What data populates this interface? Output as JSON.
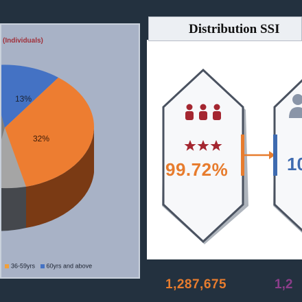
{
  "pie_panel": {
    "title_fragment": "(Individuals)"
  },
  "chart_data": {
    "type": "pie",
    "title": "(Individuals)",
    "slices": [
      {
        "label": "",
        "value": 13,
        "display": "13%",
        "color": "#4472c4"
      },
      {
        "label": "36-59yrs",
        "value": 32,
        "display": "32%",
        "color": "#ed7d31"
      },
      {
        "label": "",
        "value": 55,
        "display": "",
        "color": "#a5a5a5"
      }
    ],
    "legend": [
      {
        "label": "36-59yrs",
        "color": "#f2a03a"
      },
      {
        "label": "60yrs and above",
        "color": "#4472c4"
      }
    ],
    "legend_placement": "bottom"
  },
  "distribution": {
    "heading": "Distribution SSI",
    "cards": [
      {
        "percent": "99.72%",
        "count": "1,287,675",
        "icon": "group-people-icon",
        "color": "#e77c2e"
      },
      {
        "percent": "10",
        "count": "1,2",
        "icon": "person-icon",
        "color": "#3f6bb0"
      }
    ]
  }
}
